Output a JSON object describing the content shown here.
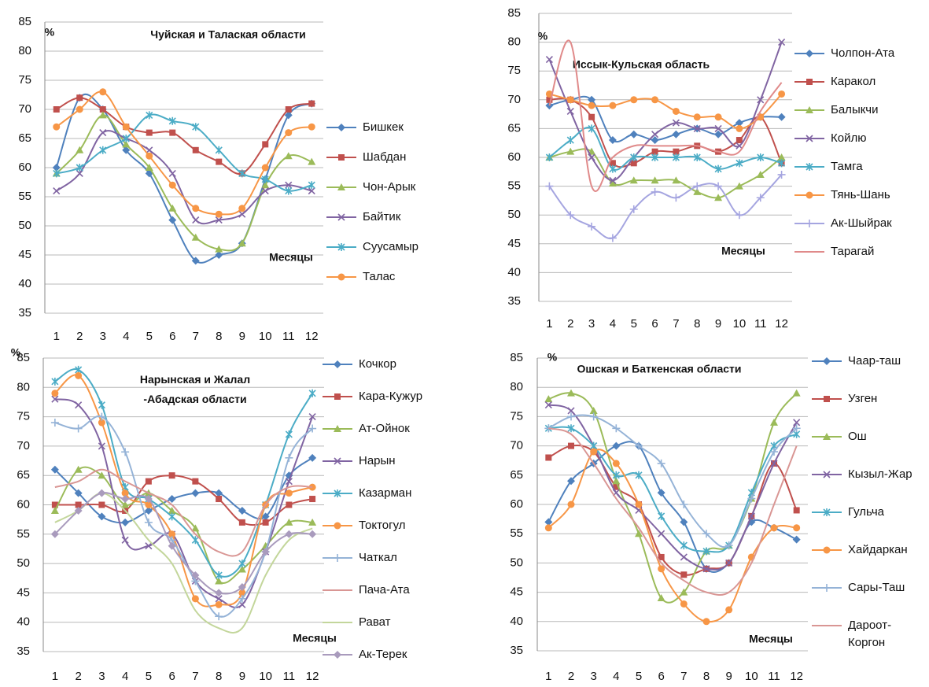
{
  "chart_data": [
    {
      "type": "line",
      "title": "Чуйская и Талаская области",
      "y_label": "%",
      "x_label": "Месяцы",
      "categories": [
        "1",
        "2",
        "3",
        "4",
        "5",
        "6",
        "7",
        "8",
        "9",
        "10",
        "11",
        "12"
      ],
      "ylim": [
        35,
        85
      ],
      "yticks": [
        35,
        40,
        45,
        50,
        55,
        60,
        65,
        70,
        75,
        80,
        85
      ],
      "grid": true,
      "series": [
        {
          "name": "Бишкек",
          "color": "#4F81BD",
          "marker": "diamond",
          "values": [
            60,
            72,
            70,
            63,
            59,
            51,
            44,
            45,
            47,
            58,
            69,
            71
          ]
        },
        {
          "name": "Шабдан",
          "color": "#C0504D",
          "marker": "square",
          "values": [
            70,
            72,
            70,
            67,
            66,
            66,
            63,
            61,
            59,
            64,
            70,
            71
          ]
        },
        {
          "name": "Чон-Арык",
          "color": "#9BBB59",
          "marker": "triangle",
          "values": [
            59,
            63,
            69,
            64,
            60,
            53,
            48,
            46,
            47,
            57,
            62,
            61
          ]
        },
        {
          "name": "Байтик",
          "color": "#8064A2",
          "marker": "x",
          "values": [
            56,
            59,
            66,
            65,
            63,
            59,
            51,
            51,
            52,
            56,
            57,
            56
          ]
        },
        {
          "name": "Суусамыр",
          "color": "#4BACC6",
          "marker": "star",
          "values": [
            59,
            60,
            63,
            65,
            69,
            68,
            67,
            63,
            59,
            58,
            56,
            57
          ]
        },
        {
          "name": "Талас",
          "color": "#F79646",
          "marker": "circle",
          "values": [
            67,
            70,
            73,
            67,
            62,
            57,
            53,
            52,
            53,
            60,
            66,
            67
          ]
        }
      ]
    },
    {
      "type": "line",
      "title": "Иссык-Кульская область",
      "y_label": "%",
      "x_label": "Месяцы",
      "categories": [
        "1",
        "2",
        "3",
        "4",
        "5",
        "6",
        "7",
        "8",
        "9",
        "10",
        "11",
        "12"
      ],
      "ylim": [
        35,
        85
      ],
      "yticks": [
        35,
        40,
        45,
        50,
        55,
        60,
        65,
        70,
        75,
        80,
        85
      ],
      "grid": true,
      "series": [
        {
          "name": "Чолпон-Ата",
          "color": "#4F81BD",
          "marker": "diamond",
          "values": [
            69,
            70,
            70,
            63,
            64,
            63,
            64,
            65,
            64,
            66,
            67,
            67
          ]
        },
        {
          "name": "Каракол",
          "color": "#C0504D",
          "marker": "square",
          "values": [
            70,
            70,
            67,
            59,
            59,
            61,
            61,
            62,
            61,
            63,
            67,
            59
          ]
        },
        {
          "name": "Балыкчи",
          "color": "#9BBB59",
          "marker": "triangle",
          "values": [
            60,
            61,
            61,
            55.5,
            56,
            56,
            56,
            54,
            53,
            55,
            57,
            60
          ]
        },
        {
          "name": "Койлю",
          "color": "#8064A2",
          "marker": "x",
          "values": [
            77,
            68,
            60,
            56,
            60,
            64,
            66,
            65,
            65,
            62,
            70,
            80
          ]
        },
        {
          "name": "Тамга",
          "color": "#4BACC6",
          "marker": "star",
          "values": [
            60,
            63,
            65,
            58,
            60,
            60,
            60,
            60,
            58,
            59,
            60,
            59
          ]
        },
        {
          "name": "Тянь-Шань",
          "color": "#F79646",
          "marker": "circle",
          "values": [
            71,
            70,
            69,
            69,
            70,
            70,
            68,
            67,
            67,
            65,
            67,
            71
          ]
        },
        {
          "name": "Ак-Шыйрак",
          "color": "#A5A5E0",
          "marker": "plus",
          "values": [
            55,
            50,
            48,
            46,
            51,
            54,
            53,
            55,
            55,
            50,
            53,
            57
          ]
        },
        {
          "name": "Тарагай",
          "color": "#E08A8A",
          "marker": "none",
          "values": [
            69,
            80,
            55,
            60,
            62,
            62,
            62,
            62,
            61,
            61,
            68,
            73
          ]
        }
      ]
    },
    {
      "type": "line",
      "title": "Нарынская и Жалал\n-Абадская области",
      "y_label": "%",
      "x_label": "Месяцы",
      "categories": [
        "1",
        "2",
        "3",
        "4",
        "5",
        "6",
        "7",
        "8",
        "9",
        "10",
        "11",
        "12"
      ],
      "ylim": [
        35,
        85
      ],
      "yticks": [
        35,
        40,
        45,
        50,
        55,
        60,
        65,
        70,
        75,
        80,
        85
      ],
      "grid": true,
      "series": [
        {
          "name": "Кочкор",
          "color": "#4F81BD",
          "marker": "diamond",
          "values": [
            66,
            62,
            58,
            57,
            59,
            61,
            62,
            62,
            59,
            58,
            65,
            68
          ]
        },
        {
          "name": "Кара-Кужур",
          "color": "#C0504D",
          "marker": "square",
          "values": [
            60,
            60,
            60,
            59,
            64,
            65,
            64,
            61,
            57,
            57,
            60,
            61
          ]
        },
        {
          "name": "Ат-Ойнок",
          "color": "#9BBB59",
          "marker": "triangle",
          "values": [
            59,
            66,
            65,
            60,
            62,
            59,
            56,
            47,
            49,
            53,
            57,
            57
          ]
        },
        {
          "name": "Нарын",
          "color": "#8064A2",
          "marker": "x",
          "values": [
            78,
            77,
            70,
            54,
            53,
            55,
            47,
            44,
            43,
            52,
            64,
            75
          ]
        },
        {
          "name": "Казарман",
          "color": "#4BACC6",
          "marker": "star",
          "values": [
            81,
            83,
            77,
            63,
            61,
            58,
            54,
            48,
            50,
            60,
            72,
            79
          ]
        },
        {
          "name": "Токтогул",
          "color": "#F79646",
          "marker": "circle",
          "values": [
            79,
            82,
            74,
            62,
            60,
            55,
            44,
            43,
            45,
            60,
            62,
            63
          ]
        },
        {
          "name": "Чаткал",
          "color": "#95B3D7",
          "marker": "plus",
          "values": [
            74,
            73,
            75,
            69,
            57,
            54,
            47,
            41,
            44,
            52,
            68,
            73
          ]
        },
        {
          "name": "Пача-Ата",
          "color": "#D99694",
          "marker": "none",
          "values": [
            63,
            64,
            66,
            64,
            62,
            60,
            55,
            52,
            52,
            60,
            63,
            63
          ]
        },
        {
          "name": "Рават",
          "color": "#C3D69B",
          "marker": "none",
          "values": [
            57,
            59,
            62,
            59,
            54,
            50,
            42,
            39,
            39,
            48,
            54,
            56
          ]
        },
        {
          "name": "Ак-Терек",
          "color": "#A99BBD",
          "marker": "diamond",
          "values": [
            55,
            59,
            62,
            61,
            61,
            53,
            48,
            45,
            46,
            52,
            55,
            55
          ]
        }
      ]
    },
    {
      "type": "line",
      "title": "Ошская и Баткенская области",
      "y_label": "%",
      "x_label": "Месяцы",
      "categories": [
        "1",
        "2",
        "3",
        "4",
        "5",
        "6",
        "7",
        "8",
        "9",
        "10",
        "11",
        "12"
      ],
      "ylim": [
        35,
        85
      ],
      "yticks": [
        35,
        40,
        45,
        50,
        55,
        60,
        65,
        70,
        75,
        80,
        85
      ],
      "grid": true,
      "series": [
        {
          "name": "Чаар-таш",
          "color": "#4F81BD",
          "marker": "diamond",
          "values": [
            57,
            64,
            67,
            70,
            70,
            62,
            57,
            49,
            50,
            57,
            56,
            54
          ]
        },
        {
          "name": "Узген",
          "color": "#C0504D",
          "marker": "square",
          "values": [
            68,
            70,
            69,
            63,
            60,
            51,
            48,
            49,
            50,
            58,
            67,
            59
          ]
        },
        {
          "name": "Ош",
          "color": "#9BBB59",
          "marker": "triangle",
          "values": [
            78,
            79,
            76,
            64,
            55,
            44,
            45,
            52,
            53,
            61,
            74,
            79
          ]
        },
        {
          "name": "Кызыл-Жар",
          "color": "#8064A2",
          "marker": "x",
          "values": [
            77,
            76,
            70,
            62,
            59,
            55,
            51,
            49,
            50,
            58,
            67,
            74
          ]
        },
        {
          "name": "Гульча",
          "color": "#4BACC6",
          "marker": "star",
          "values": [
            73,
            73,
            70,
            65,
            65,
            58,
            53,
            52,
            53,
            62,
            70,
            72
          ]
        },
        {
          "name": "Хайдаркан",
          "color": "#F79646",
          "marker": "circle",
          "values": [
            56,
            60,
            69,
            67,
            60,
            49,
            43,
            40,
            42,
            51,
            56,
            56
          ]
        },
        {
          "name": "Сары-Таш",
          "color": "#95B3D7",
          "marker": "plus",
          "values": [
            73,
            75,
            75,
            73,
            70,
            67,
            60,
            55,
            53,
            61,
            69,
            73
          ]
        },
        {
          "name": "Дароот-\nКоргон",
          "color": "#D99694",
          "marker": "none",
          "values": [
            73,
            72,
            67,
            61,
            56,
            50,
            47,
            45,
            45,
            50,
            60,
            70
          ]
        }
      ]
    }
  ]
}
